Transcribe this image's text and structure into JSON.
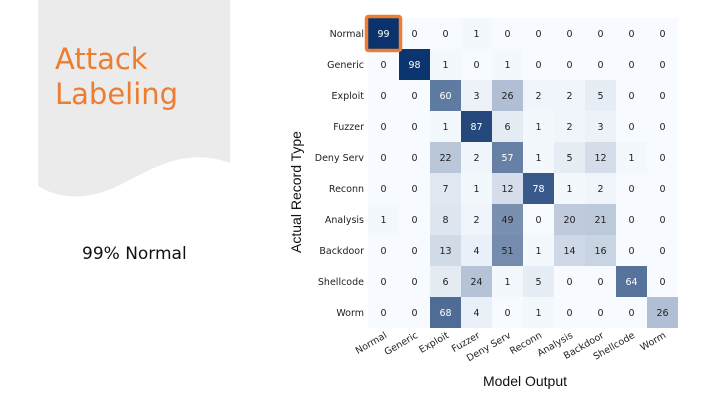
{
  "slide": {
    "title": "Attack\nLabeling",
    "callout": "99% Normal",
    "panel_color": "#EBEBEB",
    "accent_color": "#ED7D31"
  },
  "chart_data": {
    "type": "heatmap",
    "title": "",
    "xlabel": "Model Output",
    "ylabel": "Actual Record Type",
    "x_categories": [
      "Normal",
      "Generic",
      "Exploit",
      "Fuzzer",
      "Deny Serv",
      "Reconn",
      "Analysis",
      "Backdoor",
      "Shellcode",
      "Worm"
    ],
    "y_categories": [
      "Normal",
      "Generic",
      "Exploit",
      "Fuzzer",
      "Deny Serv",
      "Reconn",
      "Analysis",
      "Backdoor",
      "Shellcode",
      "Worm"
    ],
    "values": [
      [
        99,
        0,
        0,
        1,
        0,
        0,
        0,
        0,
        0,
        0
      ],
      [
        0,
        98,
        1,
        0,
        1,
        0,
        0,
        0,
        0,
        0
      ],
      [
        0,
        0,
        60,
        3,
        26,
        2,
        2,
        5,
        0,
        0
      ],
      [
        0,
        0,
        1,
        87,
        6,
        1,
        2,
        3,
        0,
        0
      ],
      [
        0,
        0,
        22,
        2,
        57,
        1,
        5,
        12,
        1,
        0
      ],
      [
        0,
        0,
        7,
        1,
        12,
        78,
        1,
        2,
        0,
        0
      ],
      [
        1,
        0,
        8,
        2,
        49,
        0,
        20,
        21,
        0,
        0
      ],
      [
        0,
        0,
        13,
        4,
        51,
        1,
        14,
        16,
        0,
        0
      ],
      [
        0,
        0,
        6,
        24,
        1,
        5,
        0,
        0,
        64,
        0
      ],
      [
        0,
        0,
        68,
        4,
        0,
        1,
        0,
        0,
        0,
        26
      ]
    ],
    "value_range": [
      0,
      100
    ],
    "colormap": "Blues",
    "highlight": {
      "row": 0,
      "col": 0,
      "color": "#ED7D31"
    }
  }
}
